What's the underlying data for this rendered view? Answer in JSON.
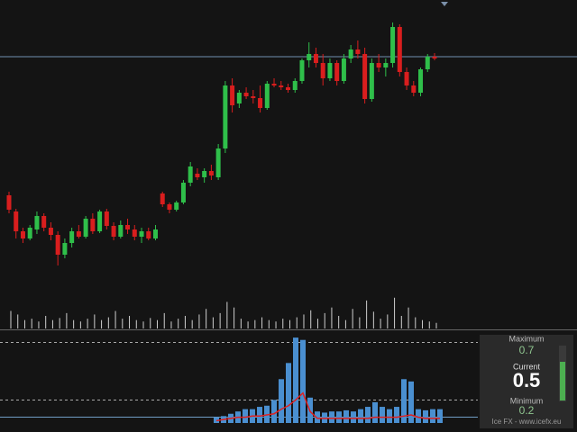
{
  "chart_data": [
    {
      "type": "candlestick",
      "ylim": [
        0,
        365
      ],
      "price_line": 302,
      "up_color": "#2fbf4a",
      "down_color": "#d91e1e",
      "candles": [
        [
          148,
          152,
          128,
          132
        ],
        [
          130,
          133,
          100,
          108
        ],
        [
          108,
          112,
          95,
          100
        ],
        [
          100,
          115,
          98,
          112
        ],
        [
          110,
          130,
          105,
          125
        ],
        [
          125,
          128,
          108,
          112
        ],
        [
          112,
          118,
          98,
          104
        ],
        [
          104,
          108,
          70,
          82
        ],
        [
          82,
          100,
          78,
          95
        ],
        [
          95,
          112,
          90,
          108
        ],
        [
          108,
          115,
          100,
          102
        ],
        [
          102,
          125,
          100,
          122
        ],
        [
          122,
          128,
          105,
          108
        ],
        [
          108,
          132,
          106,
          130
        ],
        [
          130,
          133,
          110,
          114
        ],
        [
          114,
          118,
          98,
          102
        ],
        [
          102,
          120,
          100,
          115
        ],
        [
          115,
          122,
          105,
          110
        ],
        [
          110,
          115,
          98,
          102
        ],
        [
          102,
          112,
          95,
          108
        ],
        [
          108,
          112,
          98,
          100
        ],
        [
          100,
          115,
          98,
          110
        ],
        [
          150,
          152,
          135,
          138
        ],
        [
          138,
          140,
          128,
          132
        ],
        [
          132,
          142,
          130,
          140
        ],
        [
          140,
          165,
          138,
          162
        ],
        [
          162,
          185,
          158,
          180
        ],
        [
          172,
          178,
          165,
          168
        ],
        [
          168,
          178,
          162,
          175
        ],
        [
          175,
          182,
          165,
          170
        ],
        [
          168,
          205,
          165,
          200
        ],
        [
          200,
          275,
          195,
          270
        ],
        [
          270,
          278,
          240,
          248
        ],
        [
          250,
          265,
          245,
          262
        ],
        [
          262,
          268,
          255,
          258
        ],
        [
          258,
          265,
          250,
          256
        ],
        [
          256,
          270,
          240,
          245
        ],
        [
          245,
          275,
          243,
          272
        ],
        [
          272,
          278,
          268,
          270
        ],
        [
          270,
          275,
          265,
          268
        ],
        [
          268,
          272,
          262,
          265
        ],
        [
          265,
          278,
          262,
          275
        ],
        [
          275,
          300,
          272,
          298
        ],
        [
          298,
          318,
          290,
          305
        ],
        [
          305,
          312,
          290,
          295
        ],
        [
          295,
          305,
          270,
          278
        ],
        [
          278,
          300,
          275,
          295
        ],
        [
          295,
          298,
          270,
          275
        ],
        [
          275,
          305,
          272,
          300
        ],
        [
          300,
          315,
          295,
          310
        ],
        [
          310,
          320,
          300,
          305
        ],
        [
          305,
          312,
          250,
          255
        ],
        [
          255,
          300,
          252,
          295
        ],
        [
          295,
          305,
          285,
          290
        ],
        [
          290,
          300,
          280,
          295
        ],
        [
          295,
          340,
          290,
          335
        ],
        [
          335,
          338,
          280,
          285
        ],
        [
          285,
          290,
          265,
          270
        ],
        [
          270,
          275,
          258,
          262
        ],
        [
          262,
          290,
          258,
          288
        ],
        [
          288,
          305,
          285,
          302
        ],
        [
          302,
          306,
          298,
          300
        ]
      ],
      "volume_lim": [
        0,
        45
      ],
      "volumes": [
        25,
        20,
        12,
        14,
        10,
        18,
        12,
        15,
        22,
        12,
        10,
        14,
        20,
        12,
        16,
        25,
        14,
        18,
        12,
        10,
        15,
        12,
        22,
        10,
        14,
        18,
        12,
        20,
        28,
        16,
        22,
        38,
        30,
        14,
        10,
        12,
        16,
        12,
        10,
        14,
        12,
        16,
        20,
        26,
        14,
        22,
        30,
        18,
        12,
        28,
        16,
        40,
        24,
        14,
        20,
        44,
        18,
        30,
        16,
        12,
        10,
        8
      ]
    },
    {
      "type": "bar",
      "ylim": [
        0,
        0.78
      ],
      "color": "#4a8fd0",
      "line_color": "#e02020",
      "values": [
        0.05,
        0.06,
        0.08,
        0.1,
        0.12,
        0.12,
        0.14,
        0.15,
        0.2,
        0.38,
        0.52,
        0.74,
        0.72,
        0.22,
        0.1,
        0.09,
        0.1,
        0.1,
        0.11,
        0.1,
        0.12,
        0.14,
        0.18,
        0.14,
        0.12,
        0.14,
        0.38,
        0.36,
        0.12,
        0.11,
        0.12,
        0.12
      ],
      "line_values": [
        0.02,
        0.03,
        0.04,
        0.05,
        0.05,
        0.06,
        0.06,
        0.07,
        0.08,
        0.12,
        0.15,
        0.2,
        0.26,
        0.1,
        0.04,
        0.04,
        0.04,
        0.04,
        0.04,
        0.04,
        0.04,
        0.04,
        0.05,
        0.05,
        0.05,
        0.05,
        0.06,
        0.07,
        0.05,
        0.04,
        0.04,
        0.04
      ]
    }
  ],
  "panel": {
    "maximum_label": "Maximum",
    "maximum": 0.7,
    "current_label": "Current",
    "current": 0.5,
    "minimum_label": "Minimum",
    "minimum": 0.2,
    "footer": "Ice FX - www.icefx.eu"
  }
}
